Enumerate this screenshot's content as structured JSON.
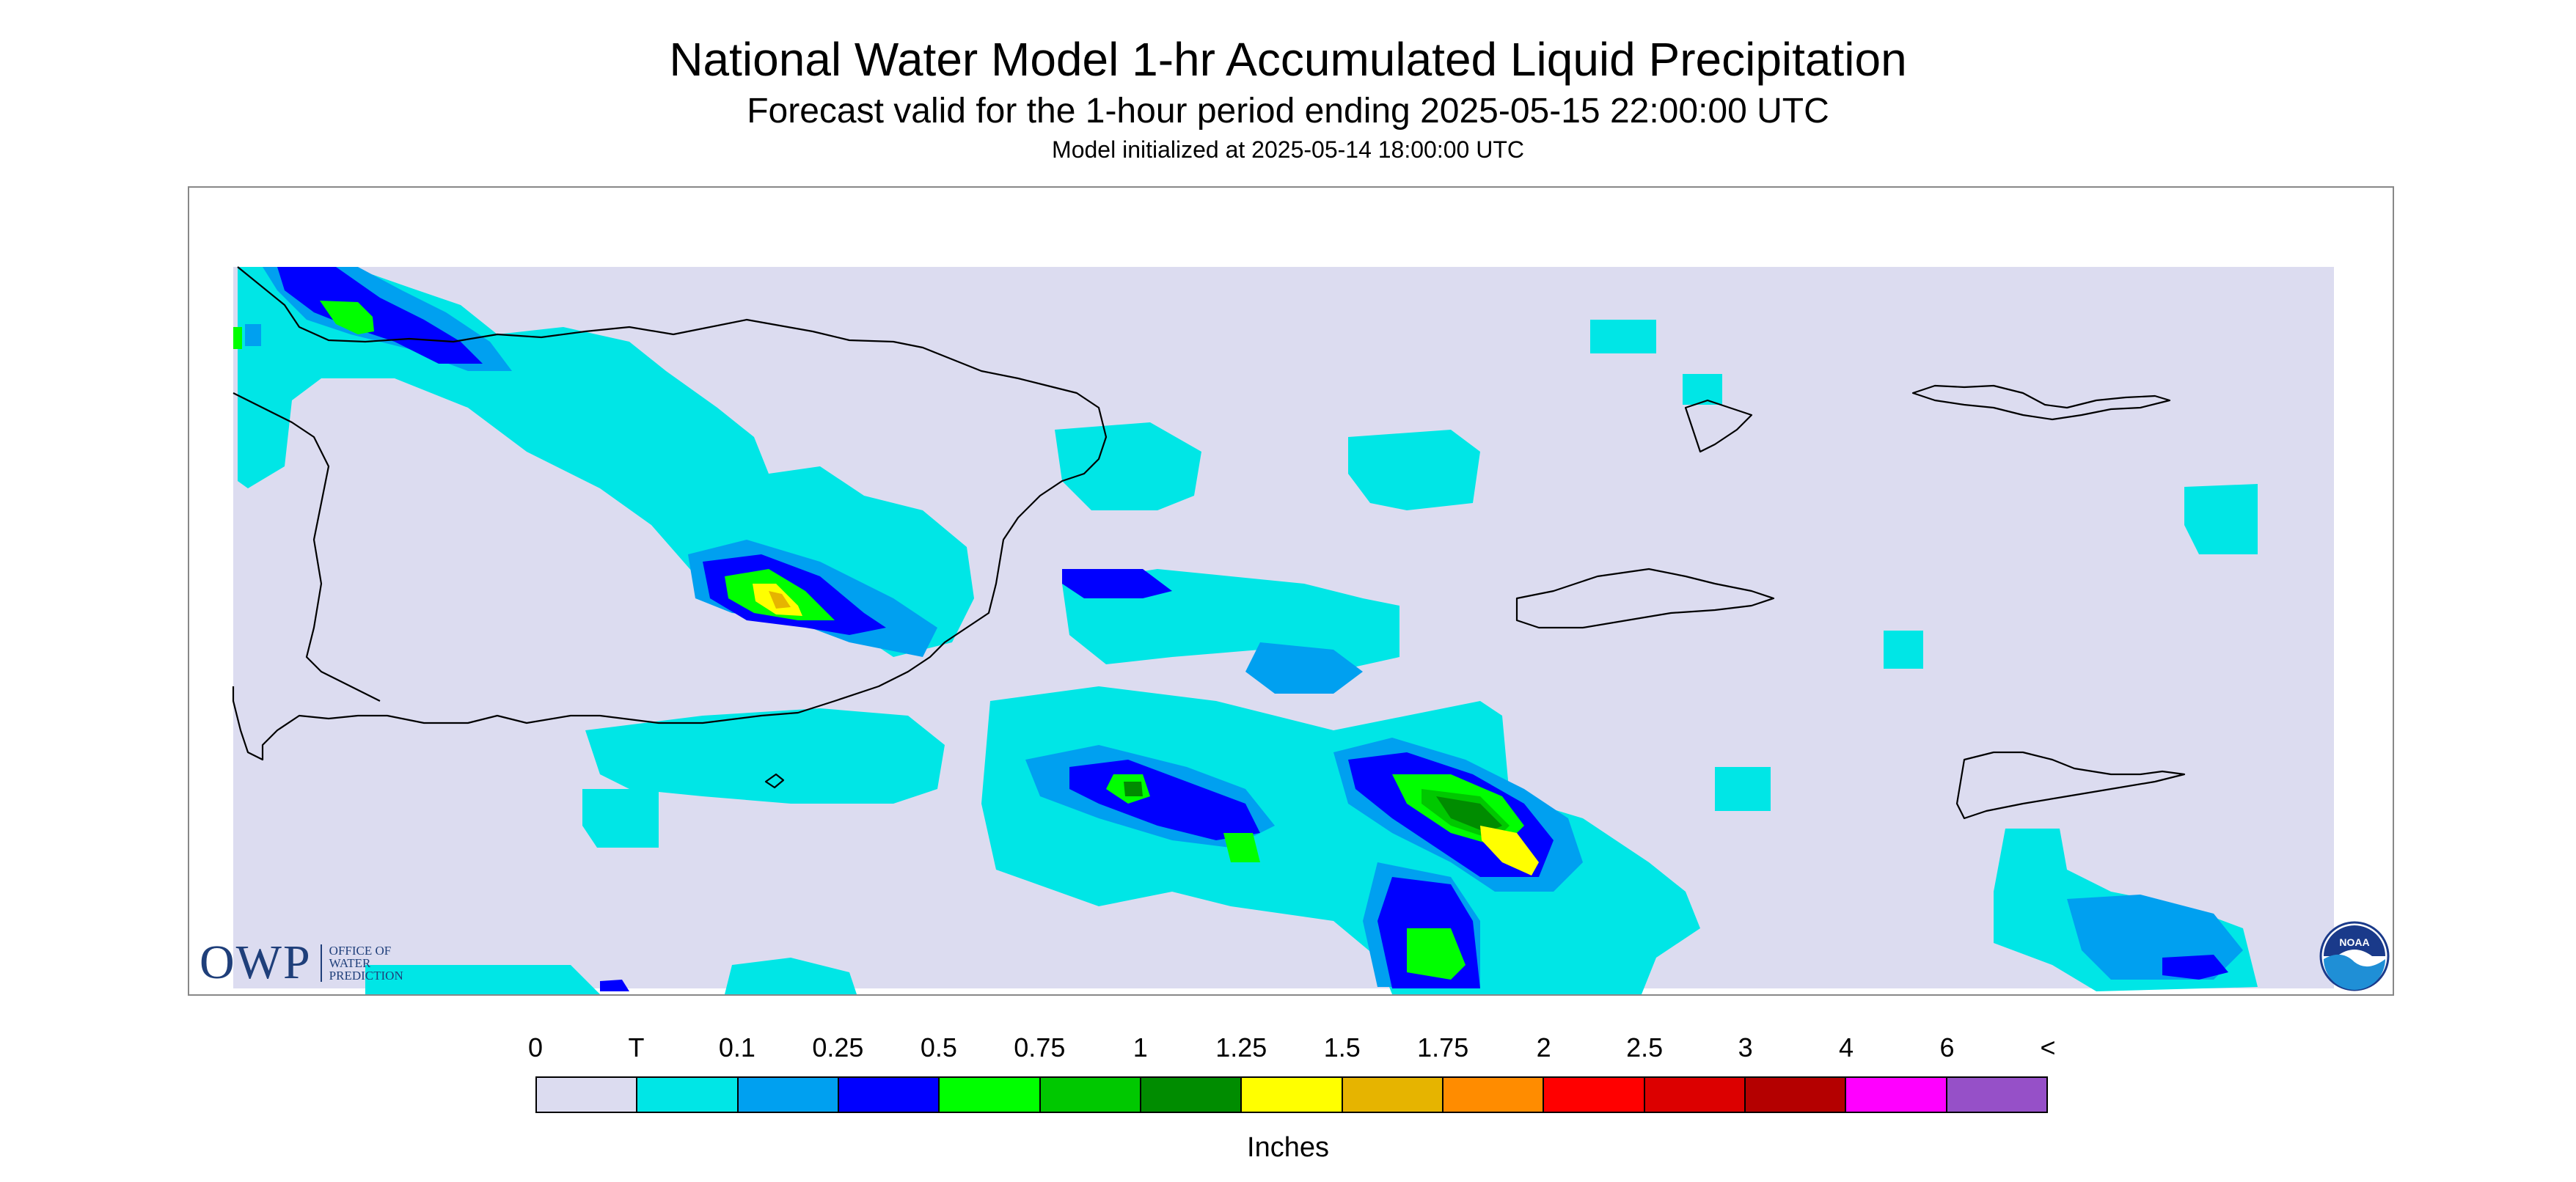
{
  "header": {
    "title": "National Water Model 1-hr Accumulated Liquid Precipitation",
    "subtitle": "Forecast valid for the 1-hour period ending 2025-05-15 22:00:00 UTC",
    "init": "Model initialized at 2025-05-14 18:00:00 UTC"
  },
  "legend": {
    "units": "Inches",
    "labels": [
      "0",
      "T",
      "0.1",
      "0.25",
      "0.5",
      "0.75",
      "1",
      "1.25",
      "1.5",
      "1.75",
      "2",
      "2.5",
      "3",
      "4",
      "6",
      "<"
    ],
    "colors": [
      "#dcdcf0",
      "#00e6e6",
      "#00a0f0",
      "#0000ff",
      "#00ff00",
      "#00c800",
      "#008c00",
      "#ffff00",
      "#e6b400",
      "#ff8c00",
      "#ff0000",
      "#dc0000",
      "#b40000",
      "#ff00ff",
      "#9650c8"
    ]
  },
  "map": {
    "background_color": "#dcdcf0",
    "coastline_color": "#000000",
    "precip_regions": [
      {
        "level": "T",
        "color": "#00e6e6"
      },
      {
        "level": "0.1",
        "color": "#00a0f0"
      },
      {
        "level": "0.25",
        "color": "#0000ff"
      },
      {
        "level": "0.5",
        "color": "#00ff00"
      },
      {
        "level": "0.75",
        "color": "#00c800"
      },
      {
        "level": "1",
        "color": "#008c00"
      },
      {
        "level": "1.25",
        "color": "#ffff00"
      },
      {
        "level": "1.5",
        "color": "#e6b400"
      }
    ]
  },
  "logos": {
    "owp_letters": "OWP",
    "owp_lines": [
      "OFFICE OF",
      "WATER",
      "PREDICTION"
    ],
    "noaa_text": "NOAA"
  }
}
